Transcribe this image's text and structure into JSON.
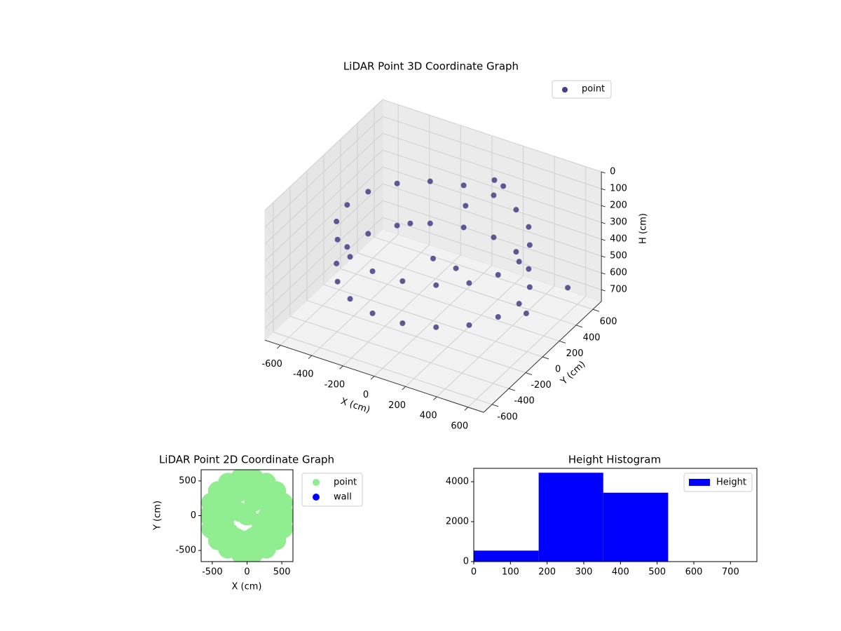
{
  "chart_data": [
    {
      "type": "scatter3d",
      "title": "LiDAR Point 3D Coordinate Graph",
      "xlabel": "X (cm)",
      "ylabel": "Y (cm)",
      "zlabel": "H (cm)",
      "xlim": [
        -700,
        700
      ],
      "ylim": [
        -700,
        700
      ],
      "zlim": [
        0,
        770
      ],
      "z_inverted": true,
      "xticks": [
        -600,
        -400,
        -200,
        0,
        200,
        400,
        600
      ],
      "yticks": [
        -600,
        -400,
        -200,
        0,
        200,
        400,
        600
      ],
      "zticks": [
        0,
        100,
        200,
        300,
        400,
        500,
        600,
        700
      ],
      "grid": true,
      "legend": "upper right",
      "series": [
        {
          "name": "point",
          "color": "#433e85",
          "x": [
            550,
            517,
            421,
            275,
            96,
            -96,
            -275,
            -421,
            -517,
            -550,
            -517,
            -421,
            -275,
            -96,
            96,
            275,
            421,
            517,
            550,
            517,
            421,
            275,
            96,
            -96,
            -275,
            -421,
            -517,
            -550,
            -517,
            -421,
            -275,
            -96,
            96,
            275,
            421,
            517,
            100,
            0,
            200,
            -200,
            700,
            650,
            150,
            180
          ],
          "y": [
            0,
            188,
            354,
            476,
            542,
            542,
            476,
            354,
            188,
            0,
            -188,
            -354,
            -476,
            -542,
            -542,
            -476,
            -354,
            -188,
            0,
            188,
            354,
            476,
            542,
            542,
            476,
            354,
            188,
            0,
            -188,
            -354,
            -476,
            -542,
            -542,
            -476,
            -354,
            -188,
            200,
            0,
            -100,
            100,
            300,
            -100,
            450,
            500
          ],
          "z": [
            250,
            250,
            250,
            250,
            250,
            250,
            250,
            250,
            250,
            250,
            250,
            250,
            250,
            250,
            250,
            250,
            250,
            250,
            500,
            500,
            500,
            500,
            500,
            500,
            500,
            500,
            500,
            500,
            500,
            500,
            500,
            500,
            500,
            500,
            500,
            500,
            150,
            400,
            350,
            300,
            500,
            480,
            100,
            150
          ]
        }
      ]
    },
    {
      "type": "scatter",
      "title": "LiDAR Point 2D Coordinate Graph",
      "xlabel": "X (cm)",
      "ylabel": "Y (cm)",
      "xlim": [
        -660,
        660
      ],
      "ylim": [
        -660,
        660
      ],
      "xticks": [
        -500,
        0,
        500
      ],
      "yticks": [
        -500,
        0,
        500
      ],
      "legend": "outside upper right",
      "series": [
        {
          "name": "point",
          "color": "#90ee90",
          "x": [
            550,
            517,
            421,
            275,
            96,
            -96,
            -275,
            -421,
            -517,
            -550,
            -517,
            -421,
            -275,
            -96,
            96,
            275,
            421,
            517,
            350,
            320,
            250,
            150,
            0,
            -150,
            -250,
            -320,
            -350,
            -320,
            -250,
            -150,
            0,
            150,
            250,
            320,
            100,
            0,
            200,
            -200,
            0,
            0,
            -100,
            300,
            -300,
            100
          ],
          "y": [
            0,
            188,
            354,
            476,
            542,
            542,
            476,
            354,
            188,
            0,
            -188,
            -354,
            -476,
            -542,
            -542,
            -476,
            -354,
            -188,
            0,
            150,
            250,
            320,
            350,
            320,
            250,
            150,
            0,
            -150,
            -250,
            -320,
            -350,
            -320,
            -250,
            -150,
            200,
            0,
            -100,
            100,
            600,
            -600,
            50,
            0,
            0,
            -300
          ]
        },
        {
          "name": "wall",
          "color": "#0000ff",
          "x": [],
          "y": []
        }
      ]
    },
    {
      "type": "histogram",
      "title": "Height Histogram",
      "bins": [
        0,
        177,
        353,
        530,
        706
      ],
      "values": [
        550,
        4450,
        3450,
        10
      ],
      "series_name": "Height",
      "color": "#0000ff",
      "xlim": [
        0,
        772
      ],
      "ylim": [
        0,
        4670
      ],
      "xticks": [
        0,
        100,
        200,
        300,
        400,
        500,
        600,
        700
      ],
      "yticks": [
        0,
        2000,
        4000
      ],
      "legend": "upper right"
    }
  ]
}
